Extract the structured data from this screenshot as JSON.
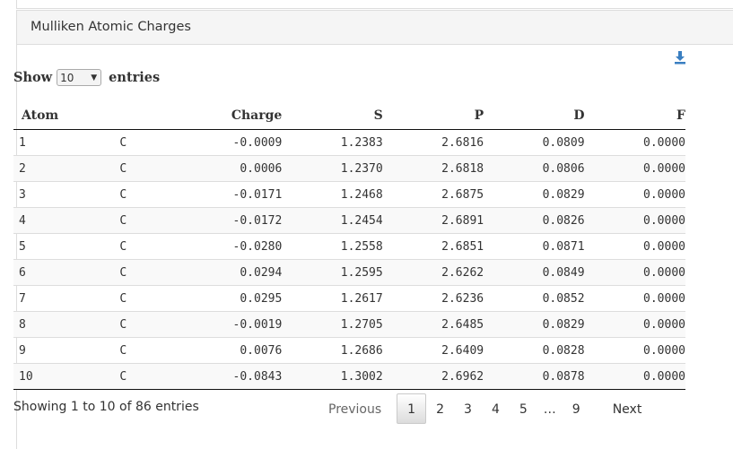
{
  "panel": {
    "title": "Mulliken Atomic Charges"
  },
  "icons": {
    "download": "download-icon",
    "select_chevron": "chevron-down-icon"
  },
  "colors": {
    "download_icon": "#3a7fc1",
    "heading_bg": "#f5f5f5",
    "row_stripe": "#f9f9f9"
  },
  "length": {
    "show_label": "Show",
    "entries_label": "entries",
    "selected": "10"
  },
  "table": {
    "headers": {
      "atom": "Atom",
      "element": "",
      "charge": "Charge",
      "s": "S",
      "p": "P",
      "d": "D",
      "f": "F"
    },
    "rows": [
      {
        "atom": "1",
        "element": "C",
        "charge": "-0.0009",
        "s": "1.2383",
        "p": "2.6816",
        "d": "0.0809",
        "f": "0.0000"
      },
      {
        "atom": "2",
        "element": "C",
        "charge": "0.0006",
        "s": "1.2370",
        "p": "2.6818",
        "d": "0.0806",
        "f": "0.0000"
      },
      {
        "atom": "3",
        "element": "C",
        "charge": "-0.0171",
        "s": "1.2468",
        "p": "2.6875",
        "d": "0.0829",
        "f": "0.0000"
      },
      {
        "atom": "4",
        "element": "C",
        "charge": "-0.0172",
        "s": "1.2454",
        "p": "2.6891",
        "d": "0.0826",
        "f": "0.0000"
      },
      {
        "atom": "5",
        "element": "C",
        "charge": "-0.0280",
        "s": "1.2558",
        "p": "2.6851",
        "d": "0.0871",
        "f": "0.0000"
      },
      {
        "atom": "6",
        "element": "C",
        "charge": "0.0294",
        "s": "1.2595",
        "p": "2.6262",
        "d": "0.0849",
        "f": "0.0000"
      },
      {
        "atom": "7",
        "element": "C",
        "charge": "0.0295",
        "s": "1.2617",
        "p": "2.6236",
        "d": "0.0852",
        "f": "0.0000"
      },
      {
        "atom": "8",
        "element": "C",
        "charge": "-0.0019",
        "s": "1.2705",
        "p": "2.6485",
        "d": "0.0829",
        "f": "0.0000"
      },
      {
        "atom": "9",
        "element": "C",
        "charge": "0.0076",
        "s": "1.2686",
        "p": "2.6409",
        "d": "0.0828",
        "f": "0.0000"
      },
      {
        "atom": "10",
        "element": "C",
        "charge": "-0.0843",
        "s": "1.3002",
        "p": "2.6962",
        "d": "0.0878",
        "f": "0.0000"
      }
    ]
  },
  "info": {
    "text": "Showing 1 to 10 of 86 entries"
  },
  "pagination": {
    "previous": "Previous",
    "pages": [
      "1",
      "2",
      "3",
      "4",
      "5"
    ],
    "ellipsis": "…",
    "last": "9",
    "next": "Next",
    "current": "1"
  }
}
